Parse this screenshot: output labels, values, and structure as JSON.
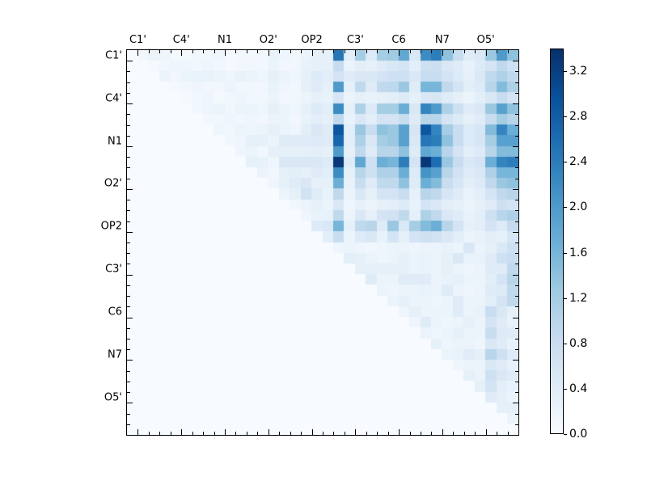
{
  "figure": {
    "background": "#ffffff"
  },
  "chart_data": {
    "type": "heatmap",
    "title": "",
    "xlabel": "",
    "ylabel": "",
    "axis_labels": [
      "C1'",
      "C4'",
      "N1",
      "O2'",
      "OP2",
      "C3'",
      "C6",
      "N7",
      "O5'"
    ],
    "label_positions": [
      1,
      5,
      9,
      13,
      17,
      21,
      25,
      29,
      33
    ],
    "n": 36,
    "grid": false,
    "vmin": 0.0,
    "vmax": 3.4,
    "colormap": "Blues",
    "colormap_stops": [
      "#f7fbff",
      "#deebf7",
      "#c6dbef",
      "#9ecae1",
      "#6baed6",
      "#4292c6",
      "#2171b5",
      "#08519c",
      "#08306b"
    ],
    "colorbar": {
      "tick_labels": [
        "0.0",
        "0.4",
        "0.8",
        "1.2",
        "1.6",
        "2.0",
        "2.4",
        "2.8",
        "3.2"
      ],
      "tick_values": [
        0.0,
        0.4,
        0.8,
        1.2,
        1.6,
        2.0,
        2.4,
        2.8,
        3.2
      ],
      "position": "right"
    },
    "matrix": [
      [
        0,
        0.1,
        0.2,
        0.15,
        0.05,
        0.05,
        0.1,
        0.1,
        0.15,
        0.05,
        0.1,
        0.1,
        0.1,
        0.25,
        0.15,
        0.1,
        0.2,
        0.3,
        0.3,
        2.5,
        0.35,
        1.2,
        0.45,
        1.2,
        1.25,
        1.8,
        0.5,
        2.2,
        2.4,
        1.4,
        0.8,
        0.4,
        0.5,
        1.3,
        2.0,
        1.4
      ],
      [
        0,
        0,
        0.05,
        0.1,
        0.15,
        0.15,
        0.1,
        0.15,
        0.1,
        0.05,
        0.1,
        0.1,
        0.1,
        0.2,
        0.1,
        0.1,
        0.25,
        0.3,
        0.3,
        0.85,
        0.2,
        0.35,
        0.3,
        0.4,
        0.5,
        0.6,
        0.35,
        0.7,
        0.75,
        0.5,
        0.4,
        0.25,
        0.45,
        0.6,
        0.9,
        0.7
      ],
      [
        0,
        0,
        0,
        0.2,
        0.1,
        0.2,
        0.25,
        0.25,
        0.2,
        0.15,
        0.25,
        0.2,
        0.15,
        0.3,
        0.2,
        0.15,
        0.3,
        0.45,
        0.35,
        0.6,
        0.4,
        0.5,
        0.5,
        0.6,
        0.7,
        0.7,
        0.5,
        0.8,
        0.8,
        0.6,
        0.45,
        0.3,
        0.5,
        0.9,
        1.1,
        0.9
      ],
      [
        0,
        0,
        0,
        0,
        0.05,
        0.1,
        0.15,
        0.1,
        0.1,
        0.2,
        0.1,
        0.1,
        0.1,
        0.25,
        0.15,
        0.1,
        0.3,
        0.4,
        0.3,
        2.0,
        0.3,
        0.9,
        0.4,
        0.9,
        0.95,
        1.3,
        0.4,
        1.6,
        1.6,
        0.9,
        0.6,
        0.35,
        0.45,
        1.0,
        1.5,
        1.1
      ],
      [
        0,
        0,
        0,
        0,
        0,
        0.05,
        0.1,
        0.15,
        0.05,
        0.1,
        0.15,
        0.1,
        0.1,
        0.2,
        0.1,
        0.1,
        0.2,
        0.3,
        0.25,
        0.55,
        0.2,
        0.3,
        0.25,
        0.3,
        0.35,
        0.45,
        0.3,
        0.5,
        0.55,
        0.4,
        0.3,
        0.2,
        0.35,
        0.5,
        0.8,
        0.6
      ],
      [
        0,
        0,
        0,
        0,
        0,
        0,
        0.1,
        0.15,
        0.2,
        0.1,
        0.2,
        0.2,
        0.15,
        0.3,
        0.2,
        0.15,
        0.3,
        0.45,
        0.35,
        2.2,
        0.3,
        1.1,
        0.45,
        1.2,
        1.2,
        1.7,
        0.5,
        2.3,
        2.0,
        1.1,
        0.7,
        0.4,
        0.5,
        1.3,
        1.9,
        1.4
      ],
      [
        0,
        0,
        0,
        0,
        0,
        0,
        0,
        0.1,
        0.1,
        0.15,
        0.1,
        0.15,
        0.1,
        0.2,
        0.2,
        0.1,
        0.25,
        0.35,
        0.3,
        0.9,
        0.25,
        0.5,
        0.35,
        0.6,
        0.6,
        0.8,
        0.4,
        1.0,
        1.0,
        0.6,
        0.45,
        0.3,
        0.4,
        0.8,
        1.2,
        1.0
      ],
      [
        0,
        0,
        0,
        0,
        0,
        0,
        0,
        0,
        0.15,
        0.1,
        0.2,
        0.15,
        0.2,
        0.3,
        0.2,
        0.15,
        0.35,
        0.5,
        0.4,
        2.9,
        0.35,
        1.3,
        0.8,
        1.4,
        1.3,
        1.9,
        0.55,
        2.9,
        2.3,
        1.2,
        0.8,
        0.45,
        0.55,
        1.5,
        2.3,
        1.7
      ],
      [
        0,
        0,
        0,
        0,
        0,
        0,
        0,
        0,
        0,
        0.1,
        0.15,
        0.3,
        0.3,
        0.2,
        0.4,
        0.4,
        0.4,
        0.45,
        0.4,
        2.7,
        0.35,
        1.1,
        0.5,
        1.2,
        1.3,
        1.9,
        0.5,
        2.5,
        2.4,
        1.4,
        0.8,
        0.45,
        0.55,
        1.2,
        1.9,
        1.9
      ],
      [
        0,
        0,
        0,
        0,
        0,
        0,
        0,
        0,
        0,
        0,
        0.15,
        0.2,
        0.1,
        0.3,
        0.3,
        0.3,
        0.3,
        0.35,
        0.3,
        2.0,
        0.3,
        0.9,
        0.4,
        1.0,
        1.0,
        1.4,
        0.4,
        1.8,
        1.7,
        1.0,
        0.6,
        0.35,
        0.45,
        1.0,
        1.5,
        1.5
      ],
      [
        0,
        0,
        0,
        0,
        0,
        0,
        0,
        0,
        0,
        0,
        0,
        0.3,
        0.25,
        0.15,
        0.5,
        0.5,
        0.5,
        0.5,
        0.45,
        3.3,
        0.4,
        1.8,
        0.7,
        1.7,
        1.6,
        2.4,
        0.6,
        3.3,
        2.6,
        1.3,
        0.8,
        0.5,
        0.6,
        1.7,
        2.3,
        2.4
      ],
      [
        0,
        0,
        0,
        0,
        0,
        0,
        0,
        0,
        0,
        0,
        0,
        0,
        0.2,
        0.1,
        0.3,
        0.35,
        0.3,
        0.4,
        0.35,
        2.2,
        0.3,
        1.0,
        0.7,
        1.1,
        1.1,
        1.7,
        0.45,
        2.1,
        1.9,
        1.0,
        0.65,
        0.4,
        0.5,
        1.1,
        1.6,
        1.6
      ],
      [
        0,
        0,
        0,
        0,
        0,
        0,
        0,
        0,
        0,
        0,
        0,
        0,
        0,
        0.15,
        0.3,
        0.4,
        0.5,
        0.3,
        0.3,
        1.7,
        0.25,
        0.8,
        0.4,
        0.9,
        0.9,
        1.4,
        0.4,
        1.7,
        1.5,
        0.8,
        0.55,
        0.35,
        0.45,
        0.9,
        1.3,
        1.4
      ],
      [
        0,
        0,
        0,
        0,
        0,
        0,
        0,
        0,
        0,
        0,
        0,
        0,
        0,
        0,
        0.2,
        0.3,
        0.65,
        0.4,
        0.25,
        0.9,
        0.2,
        0.5,
        0.3,
        0.6,
        0.6,
        0.8,
        0.3,
        1.0,
        0.9,
        0.55,
        0.4,
        0.25,
        0.35,
        0.6,
        0.9,
        1.0
      ],
      [
        0,
        0,
        0,
        0,
        0,
        0,
        0,
        0,
        0,
        0,
        0,
        0,
        0,
        0,
        0,
        0.1,
        0.2,
        0.3,
        0.2,
        0.5,
        0.15,
        0.3,
        0.2,
        0.3,
        0.35,
        0.45,
        0.25,
        0.6,
        0.5,
        0.35,
        0.3,
        0.2,
        0.3,
        0.4,
        0.7,
        0.6
      ],
      [
        0,
        0,
        0,
        0,
        0,
        0,
        0,
        0,
        0,
        0,
        0,
        0,
        0,
        0,
        0,
        0,
        0.15,
        0.25,
        0.25,
        0.9,
        0.2,
        0.5,
        0.3,
        0.6,
        0.65,
        0.9,
        0.3,
        1.1,
        0.9,
        0.5,
        0.4,
        0.25,
        0.35,
        0.7,
        1.0,
        1.1
      ],
      [
        0,
        0,
        0,
        0,
        0,
        0,
        0,
        0,
        0,
        0,
        0,
        0,
        0,
        0,
        0,
        0,
        0,
        0.45,
        0.5,
        1.6,
        0.3,
        0.9,
        1.0,
        0.4,
        1.3,
        0.5,
        1.2,
        1.5,
        1.7,
        1.0,
        0.6,
        0.3,
        0.35,
        0.6,
        0.45,
        0.85
      ],
      [
        0,
        0,
        0,
        0,
        0,
        0,
        0,
        0,
        0,
        0,
        0,
        0,
        0,
        0,
        0,
        0,
        0,
        0,
        0.35,
        0.8,
        0.2,
        0.45,
        0.5,
        0.25,
        0.6,
        0.3,
        0.6,
        0.7,
        0.65,
        0.5,
        0.35,
        0.2,
        0.25,
        0.35,
        0.3,
        0.55
      ],
      [
        0,
        0,
        0,
        0,
        0,
        0,
        0,
        0,
        0,
        0,
        0,
        0,
        0,
        0,
        0,
        0,
        0,
        0,
        0,
        0.15,
        0.2,
        0.15,
        0.1,
        0.15,
        0.2,
        0.2,
        0.15,
        0.2,
        0.2,
        0.25,
        0.2,
        0.5,
        0.2,
        0.3,
        0.5,
        0.7
      ],
      [
        0,
        0,
        0,
        0,
        0,
        0,
        0,
        0,
        0,
        0,
        0,
        0,
        0,
        0,
        0,
        0,
        0,
        0,
        0,
        0,
        0.35,
        0.3,
        0.2,
        0.15,
        0.2,
        0.3,
        0.2,
        0.25,
        0.2,
        0.3,
        0.5,
        0.25,
        0.25,
        0.4,
        0.7,
        0.8
      ],
      [
        0,
        0,
        0,
        0,
        0,
        0,
        0,
        0,
        0,
        0,
        0,
        0,
        0,
        0,
        0,
        0,
        0,
        0,
        0,
        0,
        0,
        0.3,
        0.3,
        0.3,
        0.3,
        0.3,
        0.2,
        0.25,
        0.2,
        0.3,
        0.2,
        0.15,
        0.2,
        0.4,
        0.4,
        0.9
      ],
      [
        0,
        0,
        0,
        0,
        0,
        0,
        0,
        0,
        0,
        0,
        0,
        0,
        0,
        0,
        0,
        0,
        0,
        0,
        0,
        0,
        0,
        0,
        0.4,
        0.2,
        0.2,
        0.4,
        0.4,
        0.4,
        0.2,
        0.25,
        0.3,
        0.2,
        0.2,
        0.35,
        0.6,
        1.0
      ],
      [
        0,
        0,
        0,
        0,
        0,
        0,
        0,
        0,
        0,
        0,
        0,
        0,
        0,
        0,
        0,
        0,
        0,
        0,
        0,
        0,
        0,
        0,
        0,
        0.2,
        0.15,
        0.2,
        0.2,
        0.25,
        0.2,
        0.4,
        0.2,
        0.15,
        0.2,
        0.4,
        0.45,
        0.9
      ],
      [
        0,
        0,
        0,
        0,
        0,
        0,
        0,
        0,
        0,
        0,
        0,
        0,
        0,
        0,
        0,
        0,
        0,
        0,
        0,
        0,
        0,
        0,
        0,
        0,
        0.2,
        0.3,
        0.2,
        0.2,
        0.15,
        0.2,
        0.4,
        0.2,
        0.2,
        0.35,
        0.6,
        0.9
      ],
      [
        0,
        0,
        0,
        0,
        0,
        0,
        0,
        0,
        0,
        0,
        0,
        0,
        0,
        0,
        0,
        0,
        0,
        0,
        0,
        0,
        0,
        0,
        0,
        0,
        0,
        0.15,
        0.3,
        0.2,
        0.2,
        0.2,
        0.4,
        0.2,
        0.25,
        0.8,
        0.5,
        0.3
      ],
      [
        0,
        0,
        0,
        0,
        0,
        0,
        0,
        0,
        0,
        0,
        0,
        0,
        0,
        0,
        0,
        0,
        0,
        0,
        0,
        0,
        0,
        0,
        0,
        0,
        0,
        0,
        0.15,
        0.4,
        0.2,
        0.15,
        0.2,
        0.3,
        0.2,
        0.6,
        0.4,
        0.25
      ],
      [
        0,
        0,
        0,
        0,
        0,
        0,
        0,
        0,
        0,
        0,
        0,
        0,
        0,
        0,
        0,
        0,
        0,
        0,
        0,
        0,
        0,
        0,
        0,
        0,
        0,
        0,
        0,
        0.2,
        0.15,
        0.2,
        0.3,
        0.2,
        0.2,
        0.8,
        0.45,
        0.4
      ],
      [
        0,
        0,
        0,
        0,
        0,
        0,
        0,
        0,
        0,
        0,
        0,
        0,
        0,
        0,
        0,
        0,
        0,
        0,
        0,
        0,
        0,
        0,
        0,
        0,
        0,
        0,
        0,
        0,
        0.3,
        0.15,
        0.2,
        0.2,
        0.15,
        0.5,
        0.4,
        0.25
      ],
      [
        0,
        0,
        0,
        0,
        0,
        0,
        0,
        0,
        0,
        0,
        0,
        0,
        0,
        0,
        0,
        0,
        0,
        0,
        0,
        0,
        0,
        0,
        0,
        0,
        0,
        0,
        0,
        0,
        0,
        0.2,
        0.25,
        0.4,
        0.3,
        1.0,
        0.7,
        0.4
      ],
      [
        0,
        0,
        0,
        0,
        0,
        0,
        0,
        0,
        0,
        0,
        0,
        0,
        0,
        0,
        0,
        0,
        0,
        0,
        0,
        0,
        0,
        0,
        0,
        0,
        0,
        0,
        0,
        0,
        0,
        0,
        0.15,
        0.2,
        0.2,
        0.5,
        0.4,
        0.25
      ],
      [
        0,
        0,
        0,
        0,
        0,
        0,
        0,
        0,
        0,
        0,
        0,
        0,
        0,
        0,
        0,
        0,
        0,
        0,
        0,
        0,
        0,
        0,
        0,
        0,
        0,
        0,
        0,
        0,
        0,
        0,
        0,
        0.3,
        0.2,
        0.7,
        0.5,
        0.4
      ],
      [
        0,
        0,
        0,
        0,
        0,
        0,
        0,
        0,
        0,
        0,
        0,
        0,
        0,
        0,
        0,
        0,
        0,
        0,
        0,
        0,
        0,
        0,
        0,
        0,
        0,
        0,
        0,
        0,
        0,
        0,
        0,
        0,
        0.3,
        0.6,
        0.35,
        0.25
      ],
      [
        0,
        0,
        0,
        0,
        0,
        0,
        0,
        0,
        0,
        0,
        0,
        0,
        0,
        0,
        0,
        0,
        0,
        0,
        0,
        0,
        0,
        0,
        0,
        0,
        0,
        0,
        0,
        0,
        0,
        0,
        0,
        0,
        0,
        0.4,
        0.3,
        0.2
      ],
      [
        0,
        0,
        0,
        0,
        0,
        0,
        0,
        0,
        0,
        0,
        0,
        0,
        0,
        0,
        0,
        0,
        0,
        0,
        0,
        0,
        0,
        0,
        0,
        0,
        0,
        0,
        0,
        0,
        0,
        0,
        0,
        0,
        0,
        0,
        0.3,
        0.3
      ],
      [
        0,
        0,
        0,
        0,
        0,
        0,
        0,
        0,
        0,
        0,
        0,
        0,
        0,
        0,
        0,
        0,
        0,
        0,
        0,
        0,
        0,
        0,
        0,
        0,
        0,
        0,
        0,
        0,
        0,
        0,
        0,
        0,
        0,
        0,
        0,
        0.2
      ],
      [
        0,
        0,
        0,
        0,
        0,
        0,
        0,
        0,
        0,
        0,
        0,
        0,
        0,
        0,
        0,
        0,
        0,
        0,
        0,
        0,
        0,
        0,
        0,
        0,
        0,
        0,
        0,
        0,
        0,
        0,
        0,
        0,
        0,
        0,
        0,
        0
      ]
    ]
  }
}
